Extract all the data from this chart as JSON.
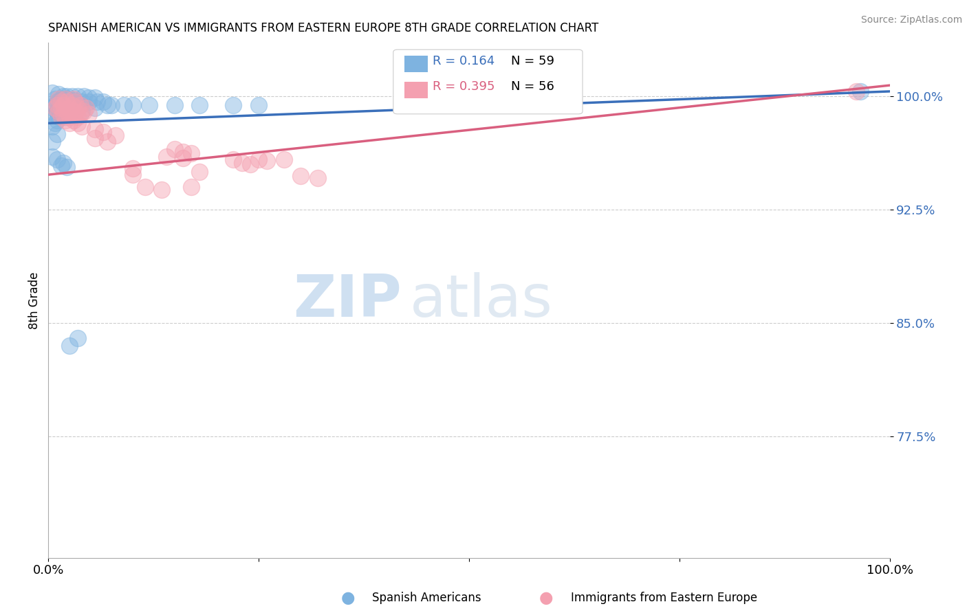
{
  "title": "SPANISH AMERICAN VS IMMIGRANTS FROM EASTERN EUROPE 8TH GRADE CORRELATION CHART",
  "source": "Source: ZipAtlas.com",
  "ylabel": "8th Grade",
  "xlim": [
    0.0,
    1.0
  ],
  "ylim": [
    0.695,
    1.035
  ],
  "yticks": [
    0.775,
    0.85,
    0.925,
    1.0
  ],
  "ytick_labels": [
    "77.5%",
    "85.0%",
    "92.5%",
    "100.0%"
  ],
  "xticks": [
    0.0,
    0.25,
    0.5,
    0.75,
    1.0
  ],
  "xtick_labels": [
    "0.0%",
    "",
    "",
    "",
    "100.0%"
  ],
  "legend_R_blue": "R = 0.164",
  "legend_N_blue": "N = 59",
  "legend_R_pink": "R = 0.395",
  "legend_N_pink": "N = 56",
  "blue_color": "#7eb3e0",
  "pink_color": "#f4a0b0",
  "blue_line_color": "#3a6fba",
  "pink_line_color": "#d95f7f",
  "watermark_zip": "ZIP",
  "watermark_atlas": "atlas",
  "blue_scatter": [
    [
      0.005,
      1.002
    ],
    [
      0.012,
      1.001
    ],
    [
      0.018,
      1.0
    ],
    [
      0.022,
      1.0
    ],
    [
      0.028,
      1.0
    ],
    [
      0.035,
      1.0
    ],
    [
      0.042,
      1.0
    ],
    [
      0.048,
      0.999
    ],
    [
      0.055,
      0.999
    ],
    [
      0.008,
      0.998
    ],
    [
      0.015,
      0.998
    ],
    [
      0.022,
      0.998
    ],
    [
      0.03,
      0.997
    ],
    [
      0.01,
      0.996
    ],
    [
      0.018,
      0.996
    ],
    [
      0.025,
      0.996
    ],
    [
      0.032,
      0.996
    ],
    [
      0.04,
      0.996
    ],
    [
      0.048,
      0.996
    ],
    [
      0.058,
      0.996
    ],
    [
      0.065,
      0.996
    ],
    [
      0.008,
      0.994
    ],
    [
      0.015,
      0.994
    ],
    [
      0.022,
      0.994
    ],
    [
      0.03,
      0.994
    ],
    [
      0.038,
      0.994
    ],
    [
      0.005,
      0.992
    ],
    [
      0.012,
      0.992
    ],
    [
      0.02,
      0.992
    ],
    [
      0.01,
      0.99
    ],
    [
      0.018,
      0.99
    ],
    [
      0.028,
      0.99
    ],
    [
      0.008,
      0.988
    ],
    [
      0.015,
      0.988
    ],
    [
      0.012,
      0.986
    ],
    [
      0.02,
      0.986
    ],
    [
      0.01,
      0.984
    ],
    [
      0.008,
      0.982
    ],
    [
      0.005,
      0.98
    ],
    [
      0.075,
      0.994
    ],
    [
      0.09,
      0.994
    ],
    [
      0.1,
      0.994
    ],
    [
      0.12,
      0.994
    ],
    [
      0.15,
      0.994
    ],
    [
      0.055,
      0.992
    ],
    [
      0.07,
      0.994
    ],
    [
      0.03,
      0.99
    ],
    [
      0.04,
      0.99
    ],
    [
      0.18,
      0.994
    ],
    [
      0.22,
      0.994
    ],
    [
      0.25,
      0.994
    ],
    [
      0.01,
      0.975
    ],
    [
      0.005,
      0.97
    ],
    [
      0.005,
      0.96
    ],
    [
      0.01,
      0.958
    ],
    [
      0.018,
      0.956
    ],
    [
      0.015,
      0.954
    ],
    [
      0.022,
      0.953
    ],
    [
      0.965,
      1.003
    ],
    [
      0.025,
      0.835
    ],
    [
      0.035,
      0.84
    ]
  ],
  "pink_scatter": [
    [
      0.012,
      0.998
    ],
    [
      0.02,
      0.998
    ],
    [
      0.03,
      0.998
    ],
    [
      0.015,
      0.996
    ],
    [
      0.022,
      0.996
    ],
    [
      0.032,
      0.996
    ],
    [
      0.01,
      0.994
    ],
    [
      0.018,
      0.994
    ],
    [
      0.028,
      0.994
    ],
    [
      0.038,
      0.994
    ],
    [
      0.008,
      0.992
    ],
    [
      0.015,
      0.992
    ],
    [
      0.025,
      0.992
    ],
    [
      0.035,
      0.992
    ],
    [
      0.045,
      0.992
    ],
    [
      0.012,
      0.99
    ],
    [
      0.022,
      0.99
    ],
    [
      0.032,
      0.99
    ],
    [
      0.042,
      0.99
    ],
    [
      0.018,
      0.988
    ],
    [
      0.028,
      0.988
    ],
    [
      0.038,
      0.988
    ],
    [
      0.015,
      0.986
    ],
    [
      0.025,
      0.986
    ],
    [
      0.035,
      0.986
    ],
    [
      0.02,
      0.984
    ],
    [
      0.03,
      0.984
    ],
    [
      0.025,
      0.982
    ],
    [
      0.048,
      0.988
    ],
    [
      0.035,
      0.982
    ],
    [
      0.04,
      0.98
    ],
    [
      0.055,
      0.978
    ],
    [
      0.065,
      0.976
    ],
    [
      0.08,
      0.974
    ],
    [
      0.055,
      0.972
    ],
    [
      0.07,
      0.97
    ],
    [
      0.15,
      0.965
    ],
    [
      0.16,
      0.963
    ],
    [
      0.17,
      0.962
    ],
    [
      0.14,
      0.96
    ],
    [
      0.16,
      0.959
    ],
    [
      0.25,
      0.958
    ],
    [
      0.26,
      0.957
    ],
    [
      0.28,
      0.958
    ],
    [
      0.22,
      0.958
    ],
    [
      0.23,
      0.956
    ],
    [
      0.24,
      0.955
    ],
    [
      0.1,
      0.952
    ],
    [
      0.18,
      0.95
    ],
    [
      0.1,
      0.948
    ],
    [
      0.3,
      0.947
    ],
    [
      0.32,
      0.946
    ],
    [
      0.115,
      0.94
    ],
    [
      0.17,
      0.94
    ],
    [
      0.135,
      0.938
    ],
    [
      0.96,
      1.003
    ]
  ],
  "reg_blue": [
    0.0,
    1.0,
    0.982,
    1.003
  ],
  "reg_pink": [
    0.0,
    1.0,
    0.948,
    1.007
  ]
}
